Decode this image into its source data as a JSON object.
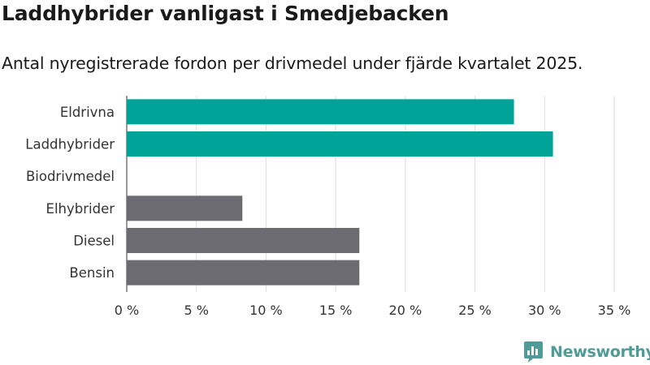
{
  "header": {
    "title": "Laddhybrider vanligast i Smedjebacken",
    "subtitle": "Antal nyregistrerade fordon per drivmedel under fjärde kvartalet 2025."
  },
  "branding": {
    "name": "Newsworthy",
    "color": "#4f9b97"
  },
  "colors": {
    "highlight": "#00a398",
    "default": "#6c6b72",
    "grid": "#dddddd",
    "axis": "#333333"
  },
  "chart_data": {
    "type": "bar",
    "orientation": "horizontal",
    "title": "Laddhybrider vanligast i Smedjebacken",
    "subtitle": "Antal nyregistrerade fordon per drivmedel under fjärde kvartalet 2025.",
    "categories": [
      "Eldrivna",
      "Laddhybrider",
      "Biodrivmedel",
      "Elhybrider",
      "Diesel",
      "Bensin"
    ],
    "values": [
      27.8,
      30.6,
      0,
      8.3,
      16.7,
      16.7
    ],
    "highlighted": [
      true,
      true,
      false,
      false,
      false,
      false
    ],
    "xlim": [
      0,
      35
    ],
    "xticks": [
      0,
      5,
      10,
      15,
      20,
      25,
      30,
      35
    ],
    "xtick_labels": [
      "0 %",
      "5 %",
      "10 %",
      "15 %",
      "20 %",
      "25 %",
      "30 %",
      "35 %"
    ],
    "xlabel": "",
    "ylabel": "",
    "grid": true,
    "legend": "none"
  }
}
